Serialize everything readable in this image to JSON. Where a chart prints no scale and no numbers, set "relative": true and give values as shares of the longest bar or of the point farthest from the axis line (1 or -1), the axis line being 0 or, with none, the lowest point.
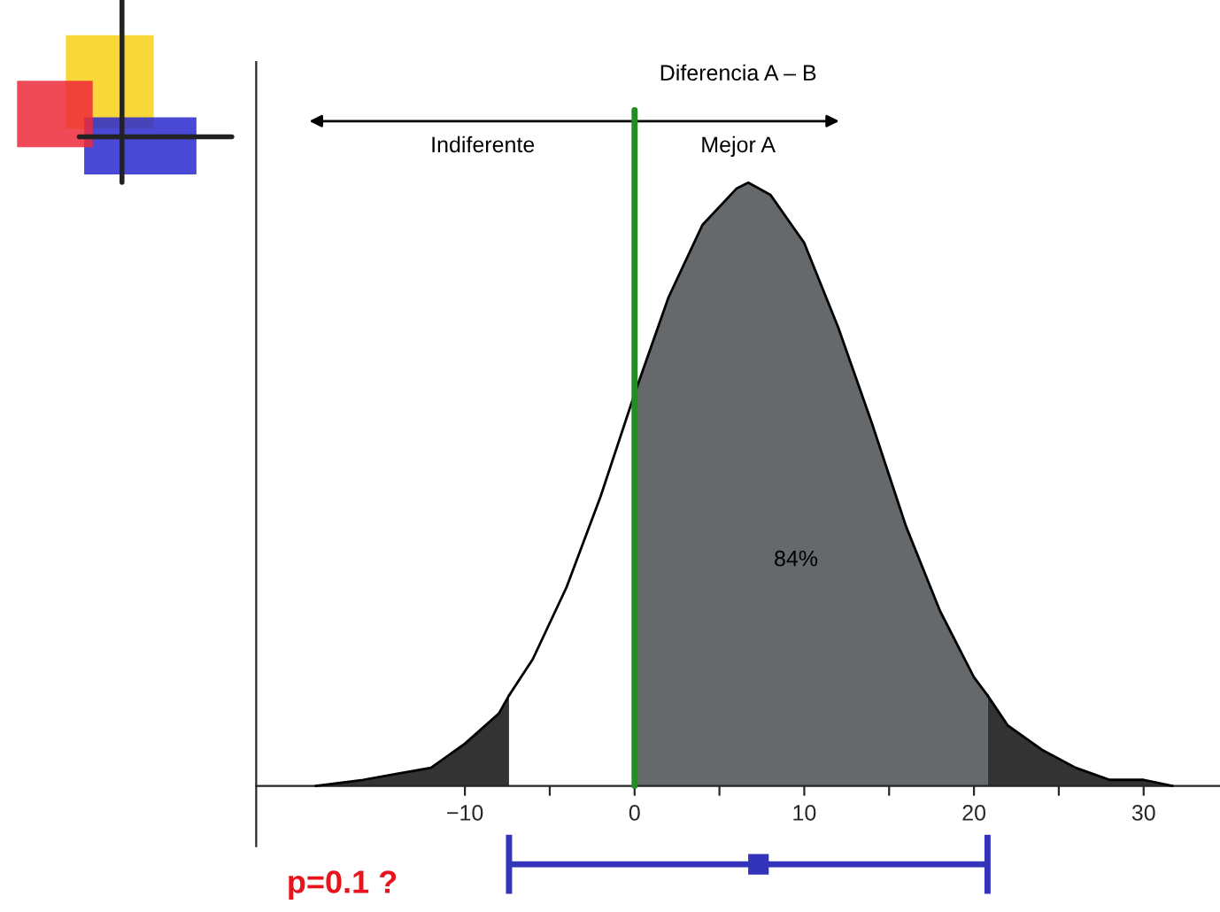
{
  "chart_data": {
    "type": "area",
    "relative": true,
    "grid": false,
    "xlim": [
      -22.3,
      34.5
    ],
    "xticks": [
      -10,
      {
        "value": -5,
        "label": null
      },
      0,
      {
        "value": 5,
        "label": null
      },
      10,
      {
        "value": 15,
        "label": null
      },
      20,
      {
        "value": 25,
        "label": null
      },
      30
    ],
    "series": [
      {
        "color": "#333333",
        "x": [
          -18.8,
          -16,
          -14,
          -12,
          -10,
          -8,
          -7.4
        ],
        "values": [
          0.0,
          0.01,
          0.02,
          0.03,
          0.07,
          0.12,
          0.15
        ]
      },
      {
        "color": "#ffffff",
        "x": [
          -7.4,
          -6,
          -4,
          -2,
          0
        ],
        "values": [
          0.15,
          0.21,
          0.33,
          0.48,
          0.65
        ]
      },
      {
        "color": "#66696c",
        "x": [
          0,
          2,
          4,
          6,
          6.7,
          8,
          10,
          12,
          14,
          16,
          18,
          20,
          20.8
        ],
        "values": [
          0.65,
          0.81,
          0.93,
          0.99,
          1.0,
          0.98,
          0.9,
          0.76,
          0.6,
          0.43,
          0.29,
          0.18,
          0.15
        ]
      },
      {
        "color": "#333333",
        "x": [
          20.8,
          22,
          24,
          26,
          28,
          30,
          31.7
        ],
        "values": [
          0.15,
          0.1,
          0.06,
          0.03,
          0.01,
          0.01,
          0.0
        ]
      },
      {
        "type": "scatter",
        "color": "#3333bb",
        "marker": "square",
        "x": [
          7.3
        ],
        "values": [
          -0.13
        ],
        "xerrors": [
          [
            -7.4,
            20.8
          ]
        ]
      }
    ],
    "ref_lines": [
      {
        "axis": "x",
        "value": 0,
        "color": "#1f8f1f"
      }
    ],
    "annotations": [
      "Diferencia A – B",
      "Indiferente",
      "Mejor A",
      "84%",
      "p=0.1 ?"
    ]
  }
}
